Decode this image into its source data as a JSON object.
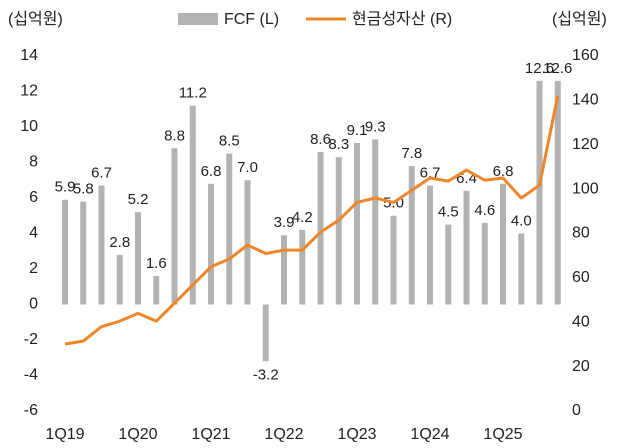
{
  "chart_data": {
    "type": "bar",
    "y_unit": "(십억원)",
    "y2_unit": "(십억원)",
    "categories": [
      "1Q19",
      null,
      null,
      null,
      "1Q20",
      null,
      null,
      null,
      "1Q21",
      null,
      null,
      null,
      "1Q22",
      null,
      null,
      null,
      "1Q23",
      null,
      null,
      null,
      "1Q24",
      null,
      null,
      null,
      "1Q25",
      null,
      null,
      null
    ],
    "series": [
      {
        "name": "FCF (L)",
        "type": "bar",
        "color": "#b3b3b3",
        "values": [
          5.9,
          5.8,
          6.7,
          2.8,
          5.2,
          1.6,
          8.8,
          11.2,
          6.8,
          8.5,
          7.0,
          -3.2,
          3.9,
          4.2,
          8.6,
          8.3,
          9.1,
          9.3,
          5.0,
          7.8,
          6.7,
          4.5,
          6.4,
          4.6,
          6.8,
          4.0,
          12.6,
          12.6
        ],
        "value_labels": [
          "5.9",
          "5.8",
          "6.7",
          "2.8",
          "5.2",
          "1.6",
          "8.8",
          "11.2",
          "6.8",
          "8.5",
          "7.0",
          "-3.2",
          "3.9",
          "4.2",
          "8.6",
          "8.3",
          "9.1",
          "9.3",
          "5.0",
          "7.8",
          "6.7",
          "4.5",
          "6.4",
          "4.6",
          "6.8",
          "4.0",
          "12.6",
          "12.6"
        ]
      },
      {
        "name": "현금성자산 (R)",
        "type": "line",
        "axis": "y2",
        "color": "#f0862a",
        "values": [
          30.2,
          31.5,
          38,
          40.5,
          44,
          40.5,
          48.6,
          56.8,
          65,
          68.5,
          74.8,
          71,
          72.5,
          72.5,
          80.6,
          86,
          94,
          96,
          94,
          99.5,
          105,
          103.6,
          108.6,
          104,
          105,
          96,
          101.8,
          142
        ]
      }
    ],
    "ylim": [
      -6,
      14
    ],
    "yticks": [
      -6,
      -4,
      -2,
      0,
      2,
      4,
      6,
      8,
      10,
      12,
      14
    ],
    "y2lim": [
      0,
      160
    ],
    "y2ticks": [
      0,
      20,
      40,
      60,
      80,
      100,
      120,
      140,
      160
    ],
    "grid": false
  }
}
